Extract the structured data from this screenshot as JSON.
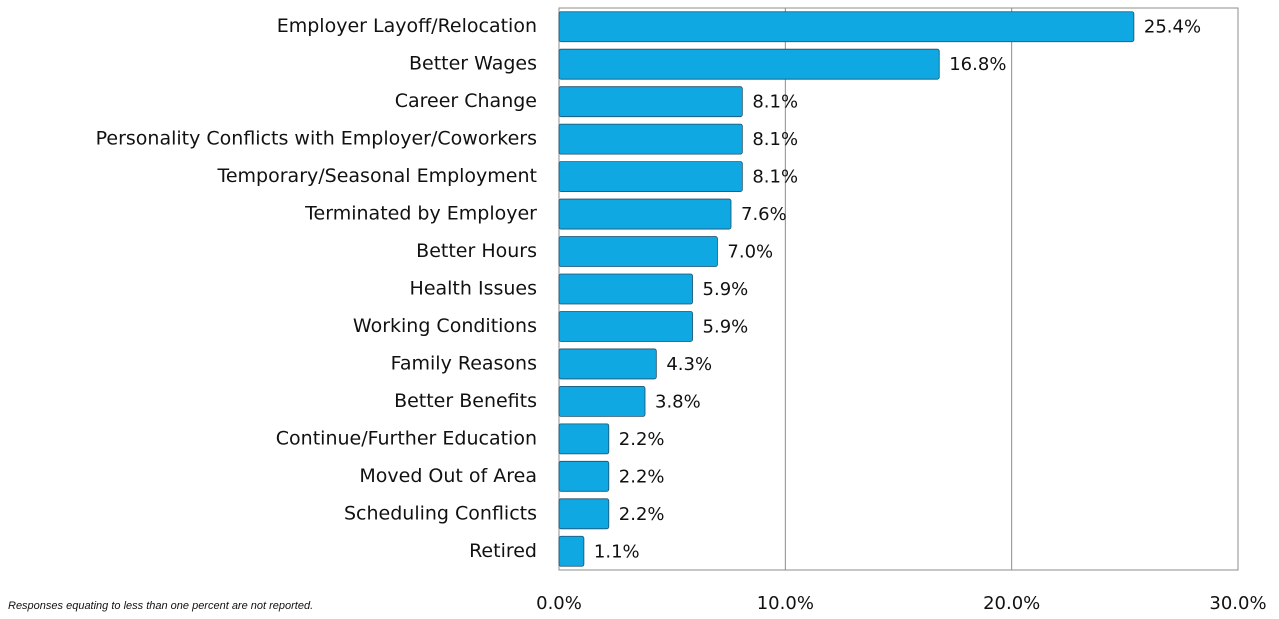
{
  "chart_data": {
    "type": "hbar",
    "categories": [
      "Employer Layoff/Relocation",
      "Better Wages",
      "Career Change",
      "Personality Conflicts with Employer/Coworkers",
      "Temporary/Seasonal Employment",
      "Terminated by Employer",
      "Better Hours",
      "Health Issues",
      "Working Conditions",
      "Family Reasons",
      "Better Benefits",
      "Continue/Further Education",
      "Moved Out of Area",
      "Scheduling Conflicts",
      "Retired"
    ],
    "values": [
      25.4,
      16.8,
      8.1,
      8.1,
      8.1,
      7.6,
      7.0,
      5.9,
      5.9,
      4.3,
      3.8,
      2.2,
      2.2,
      2.2,
      1.1
    ],
    "value_labels": [
      "25.4%",
      "16.8%",
      "8.1%",
      "8.1%",
      "8.1%",
      "7.6%",
      "7.0%",
      "5.9%",
      "5.9%",
      "4.3%",
      "3.8%",
      "2.2%",
      "2.2%",
      "2.2%",
      "1.1%"
    ],
    "color": "#10a8e2",
    "xlim": [
      0,
      30
    ],
    "xticks": [
      {
        "value": 0,
        "label": "0.0%"
      },
      {
        "value": 10,
        "label": "10.0%"
      },
      {
        "value": 20,
        "label": "20.0%"
      },
      {
        "value": 30,
        "label": "30.0%"
      }
    ],
    "grid": true,
    "note": "Responses equating to less than one percent are not reported."
  }
}
